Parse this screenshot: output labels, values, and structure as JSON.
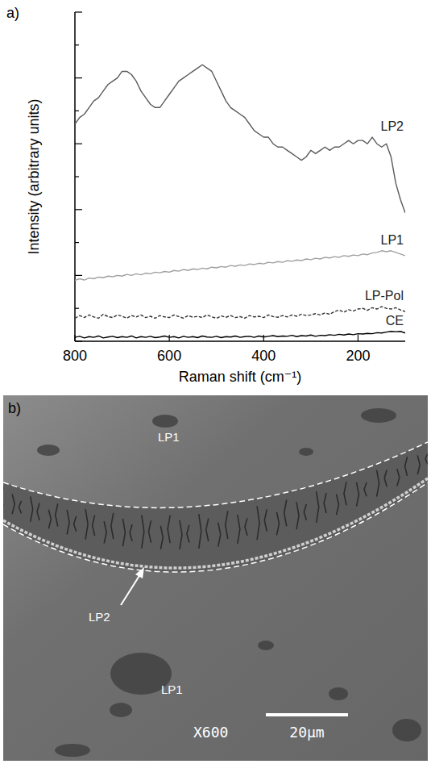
{
  "chart_data": {
    "type": "line",
    "panel_label": "a)",
    "x_label": "Raman shift (cm⁻¹)",
    "y_label": "Intensity (arbitrary units)",
    "x": [
      800,
      790,
      780,
      770,
      760,
      750,
      740,
      730,
      720,
      710,
      700,
      690,
      680,
      670,
      660,
      650,
      640,
      630,
      620,
      610,
      600,
      590,
      580,
      570,
      560,
      550,
      540,
      530,
      520,
      510,
      500,
      490,
      480,
      470,
      460,
      450,
      440,
      430,
      420,
      410,
      400,
      390,
      380,
      370,
      360,
      350,
      340,
      330,
      320,
      310,
      300,
      290,
      280,
      270,
      260,
      250,
      240,
      230,
      220,
      210,
      200,
      190,
      180,
      170,
      160,
      150,
      140,
      130,
      120,
      110,
      100
    ],
    "xlim": [
      800,
      100
    ],
    "xticks": [
      800,
      600,
      400,
      200
    ],
    "ylim": [
      0,
      10
    ],
    "yticks": [
      0,
      1,
      2,
      3,
      4,
      5,
      6,
      7,
      8,
      9,
      10
    ],
    "tick_labels": "x",
    "grid": false,
    "series": [
      {
        "name": "LP2",
        "color": "#5a5a5a",
        "line_style": "solid",
        "values": [
          6.6,
          6.8,
          6.9,
          7.1,
          7.3,
          7.4,
          7.6,
          7.8,
          7.9,
          8.0,
          8.2,
          8.2,
          8.1,
          7.9,
          7.6,
          7.4,
          7.2,
          7.1,
          7.1,
          7.3,
          7.5,
          7.7,
          7.9,
          8.0,
          8.1,
          8.2,
          8.3,
          8.4,
          8.3,
          8.2,
          7.9,
          7.6,
          7.3,
          7.1,
          7.0,
          6.9,
          6.8,
          6.6,
          6.4,
          6.3,
          6.2,
          6.2,
          6.0,
          5.9,
          5.9,
          5.8,
          5.7,
          5.6,
          5.5,
          5.6,
          5.8,
          5.7,
          5.8,
          5.9,
          5.8,
          5.9,
          5.9,
          6.0,
          6.1,
          6.0,
          6.1,
          6.1,
          6.0,
          6.2,
          6.0,
          5.9,
          6.0,
          5.6,
          4.8,
          4.3,
          3.9
        ]
      },
      {
        "name": "LP1",
        "color": "#a0a0a0",
        "line_style": "solid",
        "values": [
          1.85,
          1.9,
          1.86,
          1.92,
          1.9,
          1.95,
          1.93,
          1.98,
          1.96,
          2.0,
          1.98,
          2.03,
          2.0,
          2.05,
          2.02,
          2.07,
          2.05,
          2.1,
          2.08,
          2.12,
          2.1,
          2.15,
          2.13,
          2.18,
          2.15,
          2.2,
          2.18,
          2.22,
          2.2,
          2.25,
          2.23,
          2.27,
          2.25,
          2.3,
          2.28,
          2.32,
          2.3,
          2.35,
          2.33,
          2.37,
          2.35,
          2.4,
          2.38,
          2.42,
          2.4,
          2.45,
          2.43,
          2.47,
          2.45,
          2.5,
          2.48,
          2.52,
          2.5,
          2.55,
          2.53,
          2.57,
          2.55,
          2.6,
          2.58,
          2.62,
          2.6,
          2.65,
          2.63,
          2.68,
          2.7,
          2.75,
          2.72,
          2.75,
          2.7,
          2.65,
          2.6
        ]
      },
      {
        "name": "LP-Pol",
        "color": "#333333",
        "line_style": "dashed",
        "values": [
          0.7,
          0.78,
          0.72,
          0.8,
          0.74,
          0.7,
          0.82,
          0.75,
          0.72,
          0.8,
          0.76,
          0.7,
          0.78,
          0.74,
          0.8,
          0.72,
          0.76,
          0.7,
          0.78,
          0.74,
          0.72,
          0.8,
          0.75,
          0.7,
          0.78,
          0.73,
          0.76,
          0.72,
          0.8,
          0.74,
          0.7,
          0.77,
          0.73,
          0.78,
          0.72,
          0.75,
          0.7,
          0.78,
          0.74,
          0.76,
          0.72,
          0.8,
          0.75,
          0.73,
          0.78,
          0.74,
          0.8,
          0.76,
          0.82,
          0.78,
          0.8,
          0.84,
          0.8,
          0.86,
          0.82,
          0.9,
          0.95,
          0.88,
          0.96,
          0.92,
          0.98,
          1.0,
          0.94,
          1.02,
          0.98,
          1.05,
          1.0,
          0.98,
          1.02,
          0.95,
          0.9
        ]
      },
      {
        "name": "CE",
        "color": "#000000",
        "line_style": "solid",
        "values": [
          0.12,
          0.15,
          0.1,
          0.14,
          0.12,
          0.16,
          0.1,
          0.13,
          0.15,
          0.11,
          0.14,
          0.12,
          0.16,
          0.1,
          0.14,
          0.12,
          0.15,
          0.11,
          0.13,
          0.16,
          0.12,
          0.14,
          0.1,
          0.15,
          0.12,
          0.14,
          0.11,
          0.16,
          0.13,
          0.12,
          0.15,
          0.11,
          0.14,
          0.13,
          0.16,
          0.12,
          0.14,
          0.15,
          0.12,
          0.16,
          0.13,
          0.15,
          0.17,
          0.14,
          0.16,
          0.15,
          0.18,
          0.14,
          0.17,
          0.16,
          0.19,
          0.15,
          0.18,
          0.17,
          0.2,
          0.18,
          0.21,
          0.19,
          0.22,
          0.2,
          0.23,
          0.22,
          0.24,
          0.23,
          0.26,
          0.25,
          0.28,
          0.3,
          0.29,
          0.3,
          0.25
        ]
      }
    ]
  },
  "sem_image": {
    "panel_label": "b)",
    "region_labels": [
      "LP1",
      "LP2",
      "LP1"
    ],
    "magnification": "X600",
    "scale_bar": "20μm"
  }
}
